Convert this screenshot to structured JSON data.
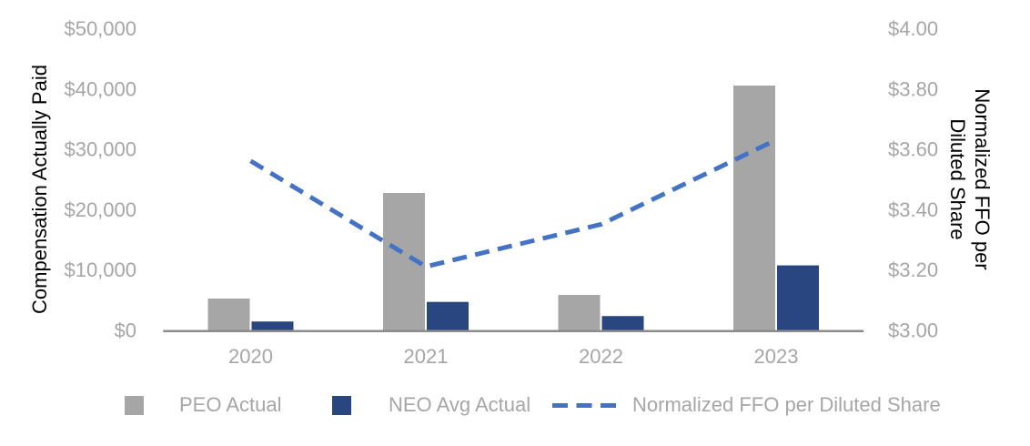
{
  "chart_data": {
    "type": "combo_bar_line",
    "categories": [
      "2020",
      "2021",
      "2022",
      "2023"
    ],
    "series": [
      {
        "name": "PEO Actual",
        "type": "bar",
        "axis": "left",
        "color": "#A6A6A6",
        "values": [
          5200,
          22700,
          5800,
          40500
        ]
      },
      {
        "name": "NEO Avg Actual",
        "type": "bar",
        "axis": "left",
        "color": "#2A4680",
        "values": [
          1400,
          4650,
          2300,
          10700
        ]
      },
      {
        "name": "Normalized FFO per Diluted Share",
        "type": "line",
        "line_style": "dashed",
        "axis": "right",
        "color": "#4472C4",
        "values": [
          3.56,
          3.21,
          3.35,
          3.63
        ]
      }
    ],
    "left_axis": {
      "title": "Compensation Actually Paid",
      "min": 0,
      "max": 50000,
      "tick_step": 10000,
      "tick_labels": [
        "$0",
        "$10,000",
        "$20,000",
        "$30,000",
        "$40,000",
        "$50,000"
      ]
    },
    "right_axis": {
      "title": "Normalized FFO per Diluted Share",
      "title_lines": [
        "Normalized FFO per",
        "Diluted Share"
      ],
      "min": 3.0,
      "max": 4.0,
      "tick_step": 0.2,
      "tick_labels": [
        "$3.00",
        "$3.20",
        "$3.40",
        "$3.60",
        "$3.80",
        "$4.00"
      ]
    },
    "grid": false,
    "legend_position": "bottom",
    "colors": {
      "tick_label": "#A6A6A6",
      "axis_line": "#8C8C8C",
      "axis_title": "#000000",
      "background": "#FFFFFF"
    }
  }
}
